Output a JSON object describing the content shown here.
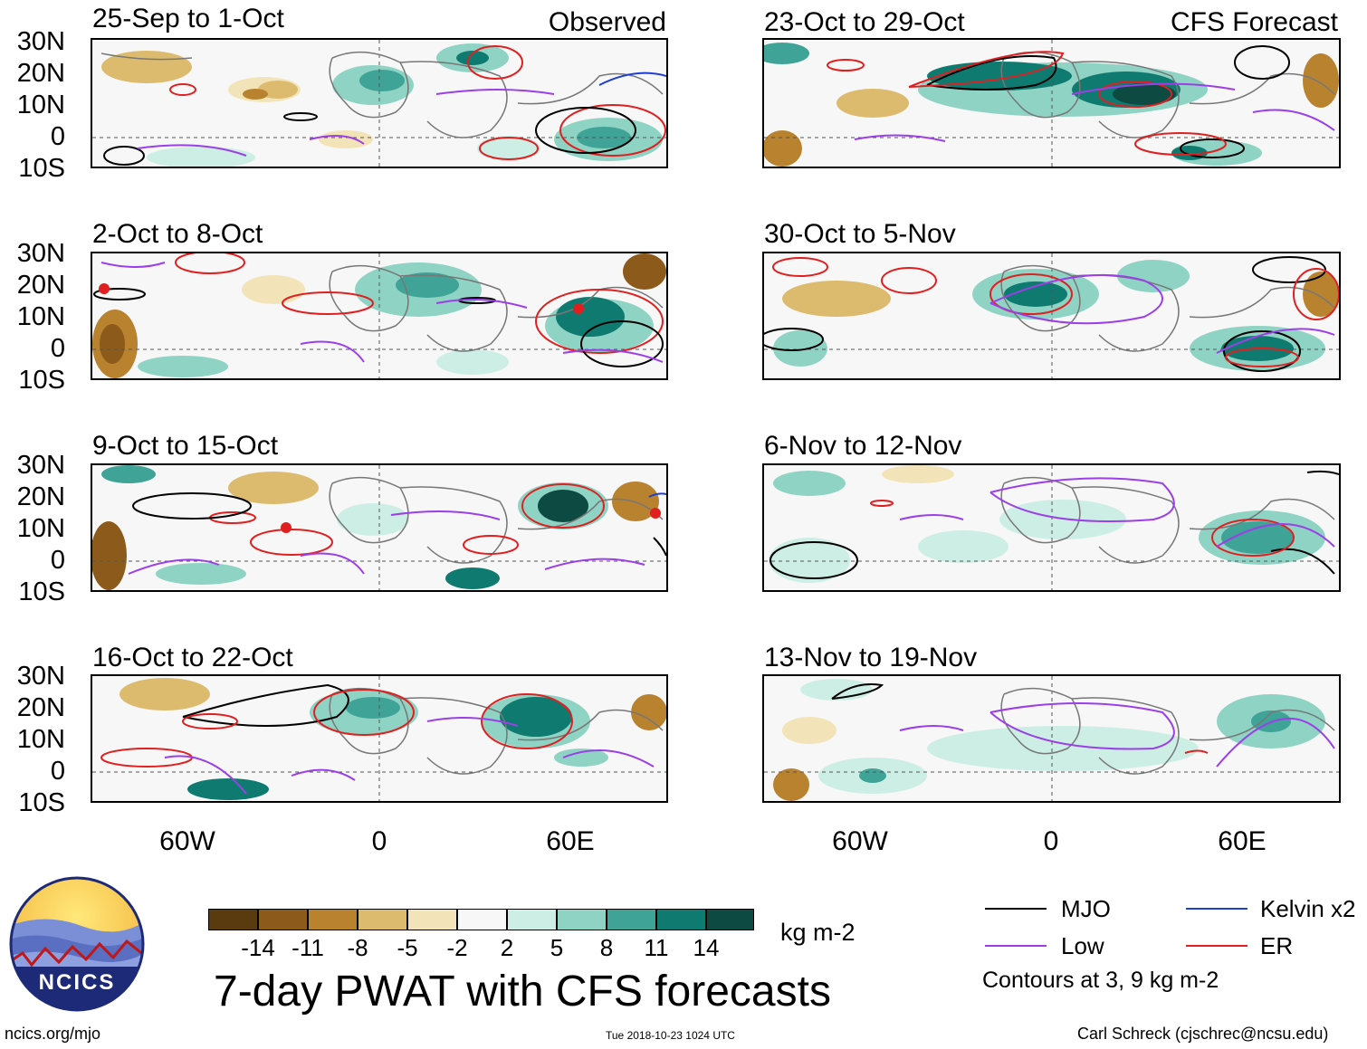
{
  "panels": {
    "observed": [
      {
        "title": "25-Sep to 1-Oct",
        "tag": "Observed"
      },
      {
        "title": "2-Oct to 8-Oct"
      },
      {
        "title": "9-Oct to 15-Oct"
      },
      {
        "title": "16-Oct to 22-Oct"
      }
    ],
    "forecast": [
      {
        "title": "23-Oct to 29-Oct",
        "tag": "CFS Forecast"
      },
      {
        "title": "30-Oct to 5-Nov"
      },
      {
        "title": "6-Nov to 12-Nov"
      },
      {
        "title": "13-Nov to 19-Nov"
      }
    ]
  },
  "lat_labels": [
    "30N",
    "20N",
    "10N",
    "0",
    "10S"
  ],
  "lon_labels": [
    "60W",
    "0",
    "60E"
  ],
  "colorbar": {
    "colors": [
      "#5a3a0f",
      "#8c5a1a",
      "#b9822f",
      "#dcbb6f",
      "#f3e3b8",
      "#f7f7f7",
      "#cdeee5",
      "#8fd3c4",
      "#3fa398",
      "#0f7a70",
      "#0c4a42"
    ],
    "labels": [
      "-14",
      "-11",
      "-8",
      "-5",
      "-2",
      "2",
      "5",
      "8",
      "11",
      "14"
    ],
    "units": "kg m-2"
  },
  "legend": {
    "items": [
      {
        "label": "MJO",
        "color": "#000000"
      },
      {
        "label": "Kelvin x2",
        "color": "#1f3fd0"
      },
      {
        "label": "Low",
        "color": "#9b3fe8"
      },
      {
        "label": "ER",
        "color": "#e02020"
      }
    ],
    "note": "Contours at 3, 9 kg m-2"
  },
  "title": "7-day PWAT with CFS forecasts",
  "logo_text": "NCICS",
  "footer": {
    "left": "ncics.org/mjo",
    "center": "Tue 2018-10-23 1024 UTC",
    "right": "Carl Schreck (cjschrec@ncsu.edu)"
  }
}
